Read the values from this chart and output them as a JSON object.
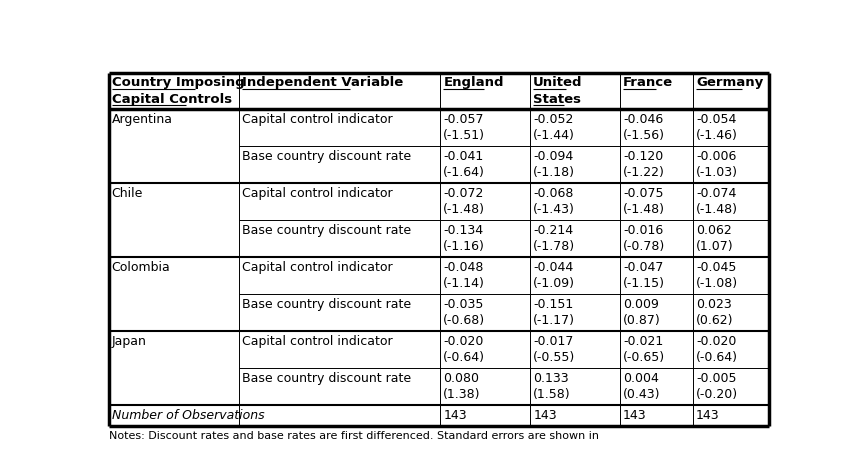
{
  "col_headers_line1": [
    "Country Imposing",
    "Independent Variable",
    "England",
    "United",
    "France",
    "Germany"
  ],
  "col_headers_line2": [
    "Capital Controls",
    "",
    "",
    "States",
    "",
    ""
  ],
  "rows": [
    [
      "Argentina",
      "Capital control indicator",
      "-0.057",
      "-0.052",
      "-0.046",
      "-0.054",
      "(-1.51)",
      "(-1.44)",
      "(-1.56)",
      "(-1.46)"
    ],
    [
      "",
      "Base country discount rate",
      "-0.041",
      "-0.094",
      "-0.120",
      "-0.006",
      "(-1.64)",
      "(-1.18)",
      "(-1.22)",
      "(-1.03)"
    ],
    [
      "Chile",
      "Capital control indicator",
      "-0.072",
      "-0.068",
      "-0.075",
      "-0.074",
      "(-1.48)",
      "(-1.43)",
      "(-1.48)",
      "(-1.48)"
    ],
    [
      "",
      "Base country discount rate",
      "-0.134",
      "-0.214",
      "-0.016",
      "0.062",
      "(-1.16)",
      "(-1.78)",
      "(-0.78)",
      "(1.07)"
    ],
    [
      "Colombia",
      "Capital control indicator",
      "-0.048",
      "-0.044",
      "-0.047",
      "-0.045",
      "(-1.14)",
      "(-1.09)",
      "(-1.15)",
      "(-1.08)"
    ],
    [
      "",
      "Base country discount rate",
      "-0.035",
      "-0.151",
      "0.009",
      "0.023",
      "(-0.68)",
      "(-1.17)",
      "(0.87)",
      "(0.62)"
    ],
    [
      "Japan",
      "Capital control indicator",
      "-0.020",
      "-0.017",
      "-0.021",
      "-0.020",
      "(-0.64)",
      "(-0.55)",
      "(-0.65)",
      "(-0.64)"
    ],
    [
      "",
      "Base country discount rate",
      "0.080",
      "0.133",
      "0.004",
      "-0.005",
      "(1.38)",
      "(1.58)",
      "(0.43)",
      "(-0.20)"
    ],
    [
      "Number of Observations",
      "",
      "143",
      "143",
      "143",
      "143",
      "",
      "",
      "",
      ""
    ]
  ],
  "note": "Notes: Discount rates and base rates are first differenced. Standard errors are shown in",
  "background_color": "#ffffff",
  "lw_outer": 2.5,
  "lw_group": 1.5,
  "lw_inner": 0.7,
  "font_size": 9.0,
  "header_font_size": 9.5
}
